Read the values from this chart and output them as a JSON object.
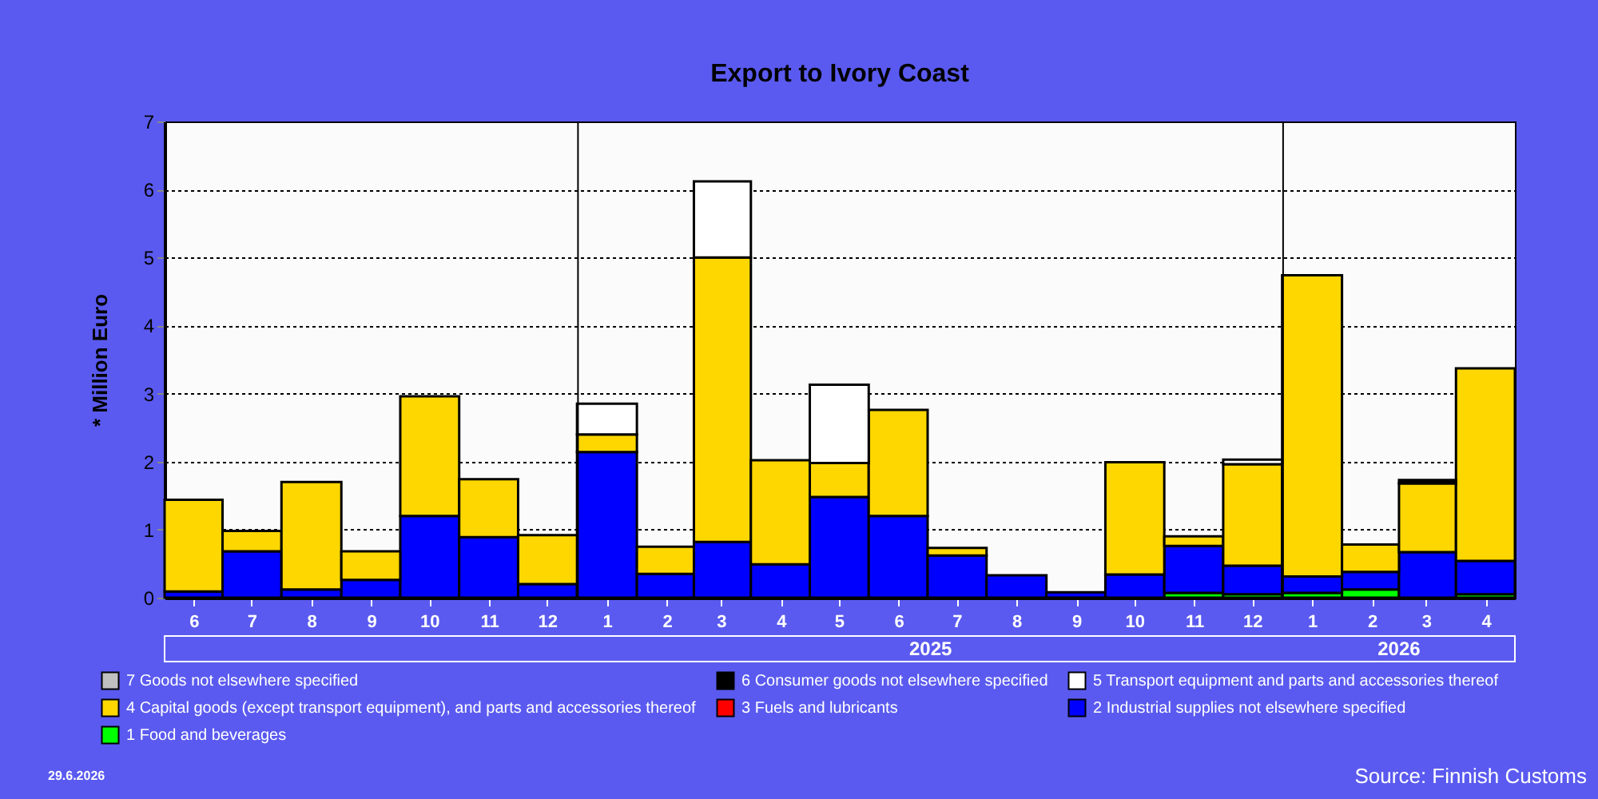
{
  "chart_data": {
    "type": "bar",
    "title": "Export to Ivory Coast",
    "ylabel": "* Million Euro",
    "stacked": true,
    "x": [
      "2024-06-16",
      "2024-07-16",
      "2024-08-16",
      "2024-09-16",
      "2024-10-16",
      "2024-11-16",
      "2024-12-16",
      "2025-01-16",
      "2025-02-16",
      "2025-03-16",
      "2025-04-16",
      "2025-05-16",
      "2025-06-16",
      "2025-07-16",
      "2025-08-16",
      "2025-09-16",
      "2025-10-16",
      "2025-11-16",
      "2025-12-16",
      "2026-01-16",
      "2026-02-16",
      "2026-03-16",
      "2026-04-16"
    ],
    "xlim": [
      "2024-06",
      "2026-05"
    ],
    "xticks": [
      {
        "value": "2024-06-16",
        "label": "6"
      },
      {
        "value": "2024-07-16",
        "label": "7"
      },
      {
        "value": "2024-08-16",
        "label": "8"
      },
      {
        "value": "2024-09-16",
        "label": "9"
      },
      {
        "value": "2024-10-16",
        "label": "10"
      },
      {
        "value": "2024-11-16",
        "label": "11"
      },
      {
        "value": "2024-12-16",
        "label": "12"
      },
      {
        "value": "2025-01-16",
        "label": "1"
      },
      {
        "value": "2025-02-16",
        "label": "2"
      },
      {
        "value": "2025-03-16",
        "label": "3"
      },
      {
        "value": "2025-04-16",
        "label": "4"
      },
      {
        "value": "2025-05-16",
        "label": "5"
      },
      {
        "value": "2025-06-16",
        "label": "6"
      },
      {
        "value": "2025-07-16",
        "label": "7"
      },
      {
        "value": "2025-08-16",
        "label": "8"
      },
      {
        "value": "2025-09-16",
        "label": "9"
      },
      {
        "value": "2025-10-16",
        "label": "10"
      },
      {
        "value": "2025-11-16",
        "label": "11"
      },
      {
        "value": "2025-12-16",
        "label": "12"
      },
      {
        "value": "2026-01-16",
        "label": "1"
      },
      {
        "value": "2026-02-16",
        "label": "2"
      },
      {
        "value": "2026-03-16",
        "label": "3"
      },
      {
        "value": "2026-04-16",
        "label": "4"
      }
    ],
    "series": [
      {
        "name": "1 Food and beverages",
        "color": "#00ff00",
        "values": [
          null,
          null,
          null,
          null,
          null,
          null,
          null,
          null,
          null,
          null,
          null,
          null,
          null,
          null,
          null,
          null,
          null,
          0.07,
          0.05,
          0.07,
          0.12,
          null,
          0.05
        ]
      },
      {
        "name": "2 Industrial supplies not elsewhere specified",
        "color": "#0000ff",
        "values": [
          0.09,
          0.68,
          0.12,
          0.26,
          1.2,
          0.89,
          0.2,
          2.14,
          0.35,
          0.82,
          0.49,
          1.48,
          1.2,
          0.62,
          0.33,
          0.08,
          0.34,
          0.69,
          0.42,
          0.24,
          0.26,
          0.67,
          0.49
        ]
      },
      {
        "name": "3 Fuels and lubricants",
        "color": "#ff0000",
        "values": [
          null,
          null,
          null,
          null,
          null,
          null,
          null,
          null,
          null,
          null,
          null,
          null,
          null,
          null,
          null,
          null,
          null,
          null,
          null,
          null,
          null,
          null,
          null
        ]
      },
      {
        "name": "4 Capital goods (except transport equipment), and parts and accessories thereof",
        "color": "#ffd700",
        "values": [
          1.35,
          0.3,
          1.58,
          0.42,
          1.76,
          0.85,
          0.72,
          0.26,
          0.4,
          4.18,
          1.53,
          0.5,
          1.56,
          0.11,
          null,
          null,
          1.65,
          0.14,
          1.49,
          4.43,
          0.4,
          1.01,
          2.83
        ]
      },
      {
        "name": "5  Transport equipment and parts and accessories thereof",
        "color": "#ffffff",
        "values": [
          null,
          null,
          null,
          null,
          null,
          null,
          null,
          0.45,
          null,
          1.12,
          null,
          1.15,
          null,
          null,
          null,
          null,
          null,
          null,
          0.07,
          null,
          null,
          null,
          null
        ]
      },
      {
        "name": "6 Consumer goods not elsewhere specified",
        "color": "#000000",
        "values": [
          null,
          null,
          null,
          null,
          null,
          null,
          null,
          null,
          null,
          null,
          null,
          null,
          null,
          null,
          null,
          null,
          null,
          null,
          null,
          null,
          null,
          0.05,
          null
        ]
      },
      {
        "name": "7 Goods not elsewhere specified",
        "color": "#c0c0c0",
        "values": [
          null,
          null,
          null,
          null,
          null,
          null,
          null,
          null,
          null,
          null,
          null,
          null,
          null,
          null,
          null,
          null,
          null,
          null,
          null,
          null,
          null,
          null,
          null
        ]
      }
    ],
    "ylim": [
      0,
      7
    ],
    "yticks": [
      0,
      1,
      2,
      3,
      4,
      5,
      6,
      7
    ],
    "grid": "y",
    "legend": "bottom",
    "ref_lines": [
      {
        "axis": "x",
        "value": "2025-01",
        "color": "#000000"
      },
      {
        "axis": "x",
        "value": "2026-01",
        "color": "#000000"
      }
    ],
    "annotations": [
      "2025",
      "2026",
      "29.6.2026",
      "Source: Finnish Customs"
    ]
  }
}
